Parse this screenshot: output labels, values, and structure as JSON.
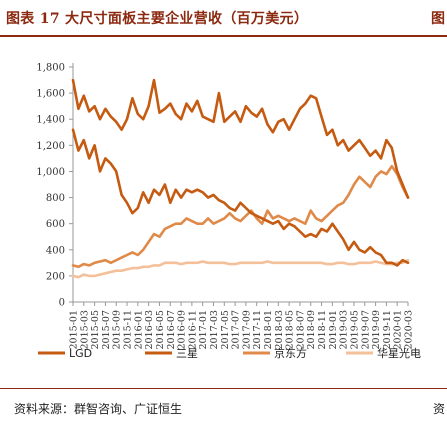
{
  "header": {
    "title": "图表 17 大尺寸面板主要企业营收（百万美元）",
    "right_fragment": "图"
  },
  "footer": {
    "source": "资料来源：群智咨询、广证恒生",
    "right_fragment": "资"
  },
  "chart_data": {
    "type": "line",
    "title": "大尺寸面板主要企业营收（百万美元）",
    "xlabel": "",
    "ylabel": "",
    "ylim": [
      0,
      1800
    ],
    "yticks": [
      "0",
      "200",
      "400",
      "600",
      "800",
      "1,000",
      "1,200",
      "1,400",
      "1,600",
      "1,800"
    ],
    "grid": false,
    "legend_position": "bottom",
    "x_start": "2015-01",
    "x_end": "2020-03",
    "xtick_labels": [
      "2015-01",
      "2015-03",
      "2015-05",
      "2015-07",
      "2015-09",
      "2015-11",
      "2016-01",
      "2016-03",
      "2016-05",
      "2016-07",
      "2016-09",
      "2016-11",
      "2017-01",
      "2017-03",
      "2017-05",
      "2017-07",
      "2017-09",
      "2017-11",
      "2018-01",
      "2018-03",
      "2018-05",
      "2018-07",
      "2018-09",
      "2018-11",
      "2019-01",
      "2019-03",
      "2019-05",
      "2019-07",
      "2019-09",
      "2019-11",
      "2020-01",
      "2020-03"
    ],
    "series": [
      {
        "name": "LGD",
        "color": "#c55a11",
        "values": [
          1700,
          1480,
          1580,
          1460,
          1500,
          1400,
          1480,
          1420,
          1380,
          1320,
          1400,
          1560,
          1440,
          1400,
          1500,
          1700,
          1450,
          1480,
          1520,
          1440,
          1400,
          1520,
          1460,
          1540,
          1420,
          1400,
          1380,
          1600,
          1380,
          1420,
          1460,
          1380,
          1500,
          1450,
          1420,
          1480,
          1360,
          1300,
          1380,
          1400,
          1320,
          1400,
          1480,
          1520,
          1580,
          1560,
          1420,
          1280,
          1320,
          1200,
          1240,
          1160,
          1200,
          1240,
          1180,
          1120,
          1160,
          1100,
          1240,
          1180,
          1000,
          900,
          800
        ]
      },
      {
        "name": "三星",
        "color": "#c55a11",
        "values": [
          1320,
          1160,
          1240,
          1100,
          1200,
          1000,
          1100,
          1060,
          1000,
          820,
          760,
          680,
          720,
          840,
          760,
          860,
          820,
          900,
          760,
          860,
          800,
          860,
          840,
          860,
          840,
          800,
          820,
          780,
          760,
          720,
          700,
          760,
          720,
          680,
          660,
          640,
          620,
          600,
          620,
          560,
          600,
          580,
          540,
          500,
          520,
          500,
          560,
          540,
          600,
          540,
          480,
          400,
          460,
          400,
          380,
          420,
          380,
          360,
          300,
          300,
          280,
          320,
          300
        ]
      },
      {
        "name": "京东方",
        "color": "#e08a4a",
        "values": [
          280,
          270,
          290,
          280,
          300,
          310,
          320,
          300,
          320,
          340,
          360,
          380,
          360,
          400,
          460,
          520,
          500,
          560,
          580,
          600,
          600,
          640,
          620,
          600,
          600,
          640,
          600,
          620,
          640,
          680,
          640,
          620,
          660,
          700,
          640,
          600,
          700,
          640,
          660,
          640,
          620,
          640,
          620,
          600,
          700,
          640,
          620,
          660,
          700,
          740,
          760,
          820,
          900,
          960,
          920,
          880,
          960,
          1000,
          980,
          1040,
          980,
          880,
          800
        ]
      },
      {
        "name": "华星光电",
        "color": "#f4c09a",
        "values": [
          200,
          190,
          210,
          200,
          200,
          210,
          220,
          230,
          240,
          240,
          250,
          260,
          260,
          270,
          270,
          280,
          280,
          300,
          300,
          300,
          290,
          300,
          300,
          300,
          310,
          300,
          300,
          300,
          300,
          290,
          290,
          300,
          300,
          300,
          300,
          300,
          310,
          300,
          300,
          300,
          300,
          300,
          300,
          300,
          300,
          300,
          300,
          290,
          290,
          300,
          300,
          290,
          290,
          300,
          300,
          300,
          310,
          300,
          290,
          290,
          300,
          300,
          320
        ]
      }
    ]
  }
}
